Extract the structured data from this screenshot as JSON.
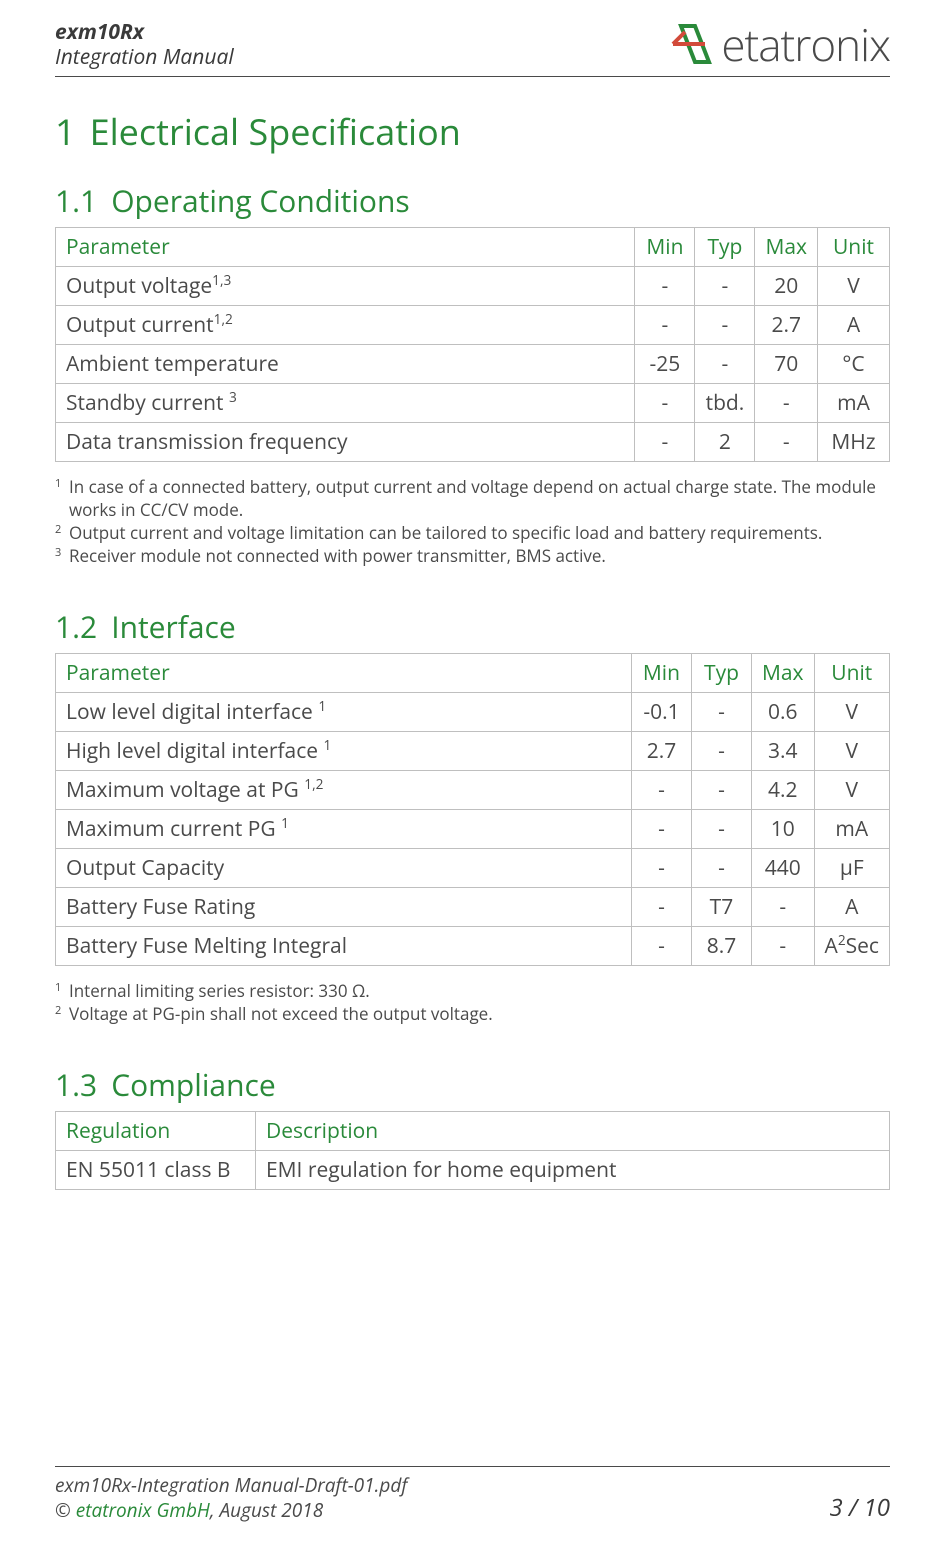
{
  "header": {
    "title": "exm10Rx",
    "subtitle": "Integration Manual",
    "brand": "etatronix"
  },
  "section": {
    "number": "1",
    "title": "Electrical Specification"
  },
  "operating": {
    "number": "1.1",
    "title": "Operating Conditions",
    "cols": {
      "param": "Parameter",
      "min": "Min",
      "typ": "Typ",
      "max": "Max",
      "unit": "Unit"
    },
    "rows": [
      {
        "param": "Output voltage",
        "sup": "1,3",
        "min": "-",
        "typ": "-",
        "max": "20",
        "unit": "V"
      },
      {
        "param": "Output current",
        "sup": "1,2",
        "min": "-",
        "typ": "-",
        "max": "2.7",
        "unit": "A"
      },
      {
        "param": "Ambient temperature",
        "sup": "",
        "min": "-25",
        "typ": "-",
        "max": "70",
        "unit": "°C"
      },
      {
        "param": "Standby current ",
        "sup": "3",
        "min": "-",
        "typ": "tbd.",
        "max": "-",
        "unit": "mA"
      },
      {
        "param": "Data transmission frequency",
        "sup": "",
        "min": "-",
        "typ": "2",
        "max": "-",
        "unit": "MHz"
      }
    ],
    "footnotes": [
      {
        "n": "1",
        "t": "In case of a connected battery, output current and voltage depend on actual charge state. The module works in CC/CV mode."
      },
      {
        "n": "2",
        "t": "Output current and voltage limitation can be tailored to specific load and battery requirements."
      },
      {
        "n": "3",
        "t": "Receiver module not connected with power transmitter, BMS active."
      }
    ]
  },
  "interface": {
    "number": "1.2",
    "title": "Interface",
    "cols": {
      "param": "Parameter",
      "min": "Min",
      "typ": "Typ",
      "max": "Max",
      "unit": "Unit"
    },
    "rows": [
      {
        "param": "Low level digital interface ",
        "sup": "1",
        "min": "-0.1",
        "typ": "-",
        "max": "0.6",
        "unit": "V"
      },
      {
        "param": "High level digital interface ",
        "sup": "1",
        "min": "2.7",
        "typ": "-",
        "max": "3.4",
        "unit": "V"
      },
      {
        "param": "Maximum voltage at PG ",
        "sup": "1,2",
        "min": "-",
        "typ": "-",
        "max": "4.2",
        "unit": "V"
      },
      {
        "param": "Maximum current PG ",
        "sup": "1",
        "min": "-",
        "typ": "-",
        "max": "10",
        "unit": "mA"
      },
      {
        "param": "Output Capacity",
        "sup": "",
        "min": "-",
        "typ": "-",
        "max": "440",
        "unit": "µF"
      },
      {
        "param": "Battery Fuse Rating",
        "sup": "",
        "min": "-",
        "typ": "T7",
        "max": "-",
        "unit": "A"
      },
      {
        "param": "Battery Fuse Melting Integral",
        "sup": "",
        "min": "-",
        "typ": "8.7",
        "max": "-",
        "unit_html": "A<sup>2</sup>Sec"
      }
    ],
    "footnotes": [
      {
        "n": "1",
        "t": "Internal limiting series resistor: 330 Ω."
      },
      {
        "n": "2",
        "t": "Voltage at PG-pin shall not exceed the output voltage."
      }
    ]
  },
  "compliance": {
    "number": "1.3",
    "title": "Compliance",
    "cols": {
      "reg": "Regulation",
      "desc": "Description"
    },
    "rows": [
      {
        "reg": "EN 55011 class B",
        "desc": "EMI regulation for home equipment"
      }
    ]
  },
  "footer": {
    "file": "exm10Rx-Integration Manual-Draft-01.pdf",
    "copyright_prefix": "© ",
    "company": "etatronix GmbH",
    "date": ", August 2018",
    "page": "3 / 10"
  }
}
